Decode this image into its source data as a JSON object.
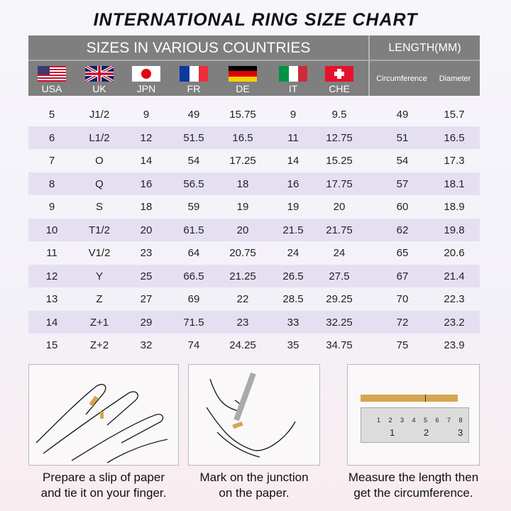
{
  "title": "INTERNATIONAL RING SIZE CHART",
  "header": {
    "sizes": "SIZES IN VARIOUS COUNTRIES",
    "length": "LENGTH(MM)",
    "countries": [
      "USA",
      "UK",
      "JPN",
      "FR",
      "DE",
      "IT",
      "CHE"
    ],
    "circumference": "Circumference",
    "diameter": "Diameter"
  },
  "rows": [
    [
      "5",
      "J1/2",
      "9",
      "49",
      "15.75",
      "9",
      "9.5",
      "49",
      "15.7"
    ],
    [
      "6",
      "L1/2",
      "12",
      "51.5",
      "16.5",
      "11",
      "12.75",
      "51",
      "16.5"
    ],
    [
      "7",
      "O",
      "14",
      "54",
      "17.25",
      "14",
      "15.25",
      "54",
      "17.3"
    ],
    [
      "8",
      "Q",
      "16",
      "56.5",
      "18",
      "16",
      "17.75",
      "57",
      "18.1"
    ],
    [
      "9",
      "S",
      "18",
      "59",
      "19",
      "19",
      "20",
      "60",
      "18.9"
    ],
    [
      "10",
      "T1/2",
      "20",
      "61.5",
      "20",
      "21.5",
      "21.75",
      "62",
      "19.8"
    ],
    [
      "11",
      "V1/2",
      "23",
      "64",
      "20.75",
      "24",
      "24",
      "65",
      "20.6"
    ],
    [
      "12",
      "Y",
      "25",
      "66.5",
      "21.25",
      "26.5",
      "27.5",
      "67",
      "21.4"
    ],
    [
      "13",
      "Z",
      "27",
      "69",
      "22",
      "28.5",
      "29.25",
      "70",
      "22.3"
    ],
    [
      "14",
      "Z+1",
      "29",
      "71.5",
      "23",
      "33",
      "32.25",
      "72",
      "23.2"
    ],
    [
      "15",
      "Z+2",
      "32",
      "74",
      "24.25",
      "35",
      "34.75",
      "75",
      "23.9"
    ]
  ],
  "steps": [
    {
      "line1": "Prepare a slip of paper",
      "line2": "and tie it on your finger."
    },
    {
      "line1": "Mark on the junction",
      "line2": "on the paper."
    },
    {
      "line1": "Measure the length then",
      "line2": "get the circumference."
    }
  ],
  "ruler": {
    "mm_labels": [
      "1",
      "2",
      "3",
      "4",
      "5",
      "6",
      "7",
      "8"
    ],
    "inch_labels": [
      "1",
      "2",
      "3"
    ]
  },
  "colors": {
    "header": "#7f7f7f",
    "alt_row": "#e5e0f1",
    "paper": "#d4a650"
  }
}
